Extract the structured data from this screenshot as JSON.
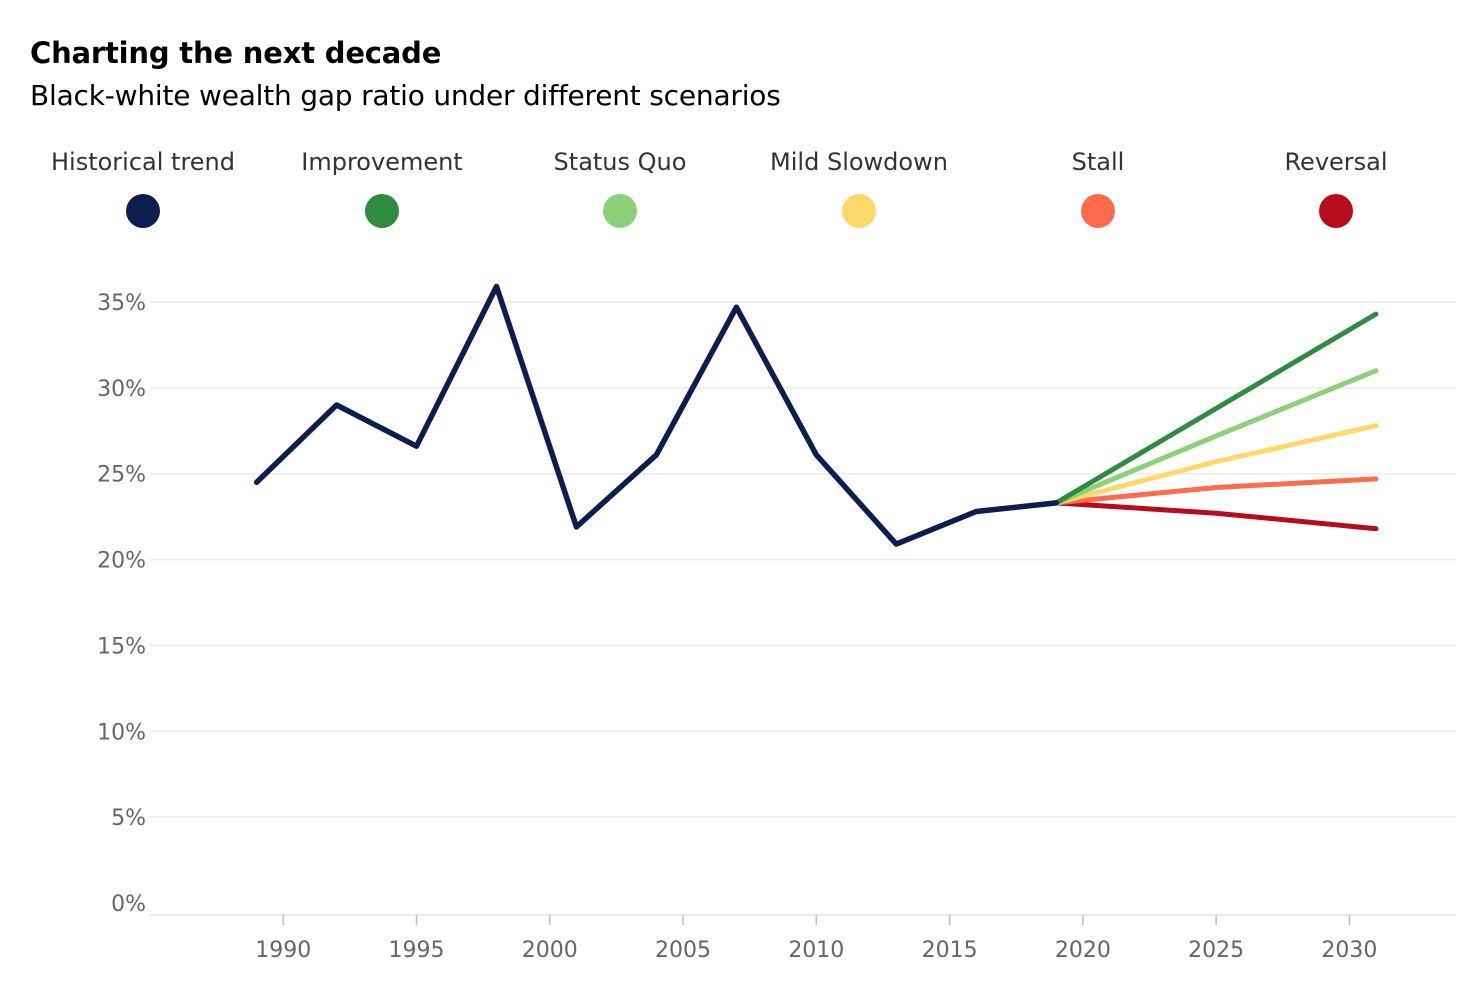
{
  "header": {
    "title": "Charting the next decade",
    "subtitle": "Black-white wealth gap ratio under different scenarios"
  },
  "legend": [
    {
      "label": "Historical trend",
      "color": "#0b1e4f"
    },
    {
      "label": "Improvement",
      "color": "#2e8b3f"
    },
    {
      "label": "Status Quo",
      "color": "#8dd07a"
    },
    {
      "label": "Mild Slowdown",
      "color": "#fdd96a"
    },
    {
      "label": "Stall",
      "color": "#ff6b4d"
    },
    {
      "label": "Reversal",
      "color": "#b50d1e"
    }
  ],
  "chart_data": {
    "type": "line",
    "title": "Charting the next decade",
    "subtitle": "Black-white wealth gap ratio under different scenarios",
    "xlabel": "",
    "ylabel": "",
    "xlim": [
      1985,
      2034
    ],
    "ylim": [
      0,
      36
    ],
    "x_ticks": [
      1990,
      1995,
      2000,
      2005,
      2010,
      2015,
      2020,
      2025,
      2030
    ],
    "x_tick_labels": [
      "1990",
      "1995",
      "2000",
      "2005",
      "2010",
      "2015",
      "2020",
      "2025",
      "2030"
    ],
    "y_ticks": [
      0,
      5,
      10,
      15,
      20,
      25,
      30,
      35
    ],
    "y_tick_labels": [
      "0%",
      "5%",
      "10%",
      "15%",
      "20%",
      "25%",
      "30%",
      "35%"
    ],
    "grid": true,
    "legend_position": "top",
    "series": [
      {
        "name": "Historical trend",
        "color": "#0b1e4f",
        "points": [
          [
            1989,
            24.5
          ],
          [
            1992,
            29.0
          ],
          [
            1995,
            26.6
          ],
          [
            1998,
            35.9
          ],
          [
            2001,
            21.9
          ],
          [
            2004,
            26.1
          ],
          [
            2007,
            34.7
          ],
          [
            2010,
            26.1
          ],
          [
            2013,
            20.9
          ],
          [
            2016,
            22.8
          ],
          [
            2019,
            23.3
          ]
        ]
      },
      {
        "name": "Improvement",
        "color": "#2e8b3f",
        "points": [
          [
            2019,
            23.3
          ],
          [
            2025,
            28.8
          ],
          [
            2031,
            34.3
          ]
        ]
      },
      {
        "name": "Status Quo",
        "color": "#8dd07a",
        "points": [
          [
            2019,
            23.3
          ],
          [
            2025,
            27.2
          ],
          [
            2031,
            31.0
          ]
        ]
      },
      {
        "name": "Mild Slowdown",
        "color": "#fdd96a",
        "points": [
          [
            2019,
            23.3
          ],
          [
            2025,
            25.7
          ],
          [
            2031,
            27.8
          ]
        ]
      },
      {
        "name": "Stall",
        "color": "#ff6b4d",
        "points": [
          [
            2019,
            23.3
          ],
          [
            2025,
            24.2
          ],
          [
            2031,
            24.7
          ]
        ]
      },
      {
        "name": "Reversal",
        "color": "#b50d1e",
        "points": [
          [
            2019,
            23.3
          ],
          [
            2025,
            22.7
          ],
          [
            2031,
            21.8
          ]
        ]
      }
    ]
  }
}
